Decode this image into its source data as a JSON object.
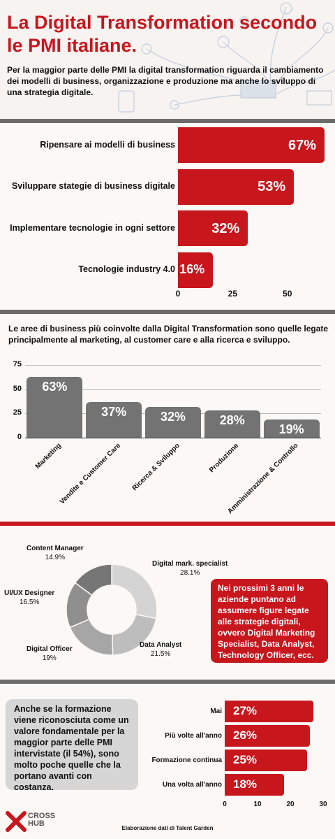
{
  "header": {
    "title": "La Digital Transformation secondo le PMI italiane.",
    "intro": "Per la maggior parte delle PMI la digital transformation riguarda il cambiamento dei modelli di business, organizzazione e produzione ma anche lo sviluppo di una strategia digitale."
  },
  "section2": {
    "intro": "Le aree di business più coinvolte dalla Digital Transformation sono quelle legate principalmente al marketing, al customer care e alla ricerca e sviluppo."
  },
  "section3": {
    "callout": "Nei prossimi 3 anni le aziende puntano ad assumere figure legate alle strategie digitali, ovvero Digital Marketing Specialist, Data Analyst, Technology Officer, ecc."
  },
  "section4": {
    "note": "Anche se la formazione viene riconosciuta come un valore fondamentale per la maggior parte delle PMI intervistate (il 54%), sono molto poche quelle che la portano avanti con costanza."
  },
  "footer": {
    "logo_line1": "CROSS",
    "logo_line2": "HUB",
    "credit": "Elaborazione dati di Talent Garden"
  },
  "colors": {
    "accent": "#c8161d",
    "bar_gray": "#737373",
    "divider": "#6c6c6c"
  },
  "chart_data": [
    {
      "type": "bar",
      "orientation": "horizontal",
      "categories": [
        "Ripensare ai modelli di business",
        "Sviluppare stategie di business digitale",
        "Implementare tecnologie in ogni settore",
        "Tecnologie industry 4.0"
      ],
      "values": [
        67,
        53,
        32,
        16
      ],
      "value_labels": [
        "67%",
        "53%",
        "32%",
        "16%"
      ],
      "xticks": [
        "0",
        "25",
        "50"
      ],
      "xlim": [
        0,
        67
      ],
      "color": "#c8161d"
    },
    {
      "type": "bar",
      "orientation": "vertical",
      "categories": [
        "Marketing",
        "Vendite e Customer Care",
        "Ricerca & Sviluppo",
        "Produzione",
        "Amministrazione & Controllo"
      ],
      "values": [
        63,
        37,
        32,
        28,
        19
      ],
      "value_labels": [
        "63%",
        "37%",
        "32%",
        "28%",
        "19%"
      ],
      "yticks": [
        "75",
        "50",
        "25",
        "0"
      ],
      "ylim": [
        0,
        75
      ],
      "grid": true,
      "color": "#737373"
    },
    {
      "type": "pie",
      "variant": "donut",
      "slices": [
        {
          "label": "Digital mark. specialist",
          "value": 28.1,
          "value_label": "28.1%",
          "color": "#d4d4d4"
        },
        {
          "label": "Data Analyst",
          "value": 21.5,
          "value_label": "21.5%",
          "color": "#bdbdbd"
        },
        {
          "label": "Digital Officer",
          "value": 19,
          "value_label": "19%",
          "color": "#a6a6a6"
        },
        {
          "label": "UI/UX Designer",
          "value": 16.5,
          "value_label": "16.5%",
          "color": "#8f8f8f"
        },
        {
          "label": "Content Manager",
          "value": 14.9,
          "value_label": "14.9%",
          "color": "#767676"
        }
      ]
    },
    {
      "type": "bar",
      "orientation": "horizontal",
      "categories": [
        "Mai",
        "Più volte all'anno",
        "Formazione continua",
        "Una volta all'anno"
      ],
      "values": [
        27,
        26,
        25,
        18
      ],
      "value_labels": [
        "27%",
        "26%",
        "25%",
        "18%"
      ],
      "xticks": [
        "0",
        "10",
        "20",
        "30"
      ],
      "xlim": [
        0,
        30
      ],
      "color": "#c8161d"
    }
  ]
}
